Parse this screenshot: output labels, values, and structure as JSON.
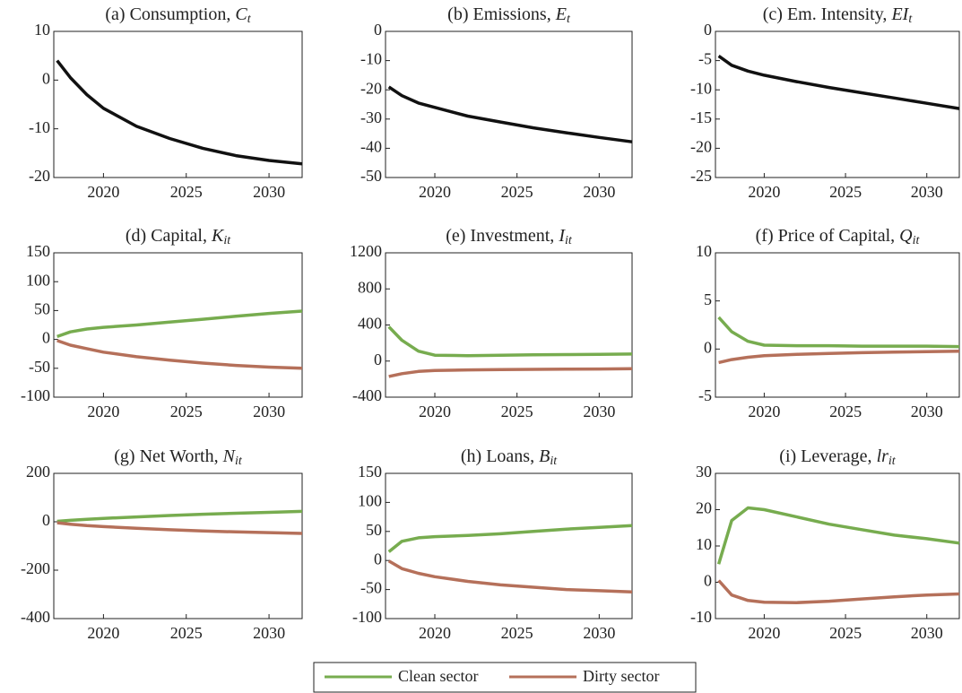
{
  "chart_data": [
    {
      "type": "line",
      "title": "(a) Consumption,",
      "title_symbol": "C",
      "title_subscript": "t",
      "x": [
        2017.2,
        2018,
        2019,
        2020,
        2022,
        2024,
        2026,
        2028,
        2030,
        2032
      ],
      "series": [
        {
          "color": "#111111",
          "values": [
            4,
            0.5,
            -3,
            -5.8,
            -9.5,
            -12,
            -14,
            -15.5,
            -16.5,
            -17.2
          ]
        }
      ],
      "xlim": [
        2017,
        2032
      ],
      "xticks": [
        2020,
        2025,
        2030
      ],
      "ylim": [
        -20,
        10
      ],
      "yticks": [
        -20,
        -10,
        0,
        10
      ]
    },
    {
      "type": "line",
      "title": "(b) Emissions,",
      "title_symbol": "E",
      "title_subscript": "t",
      "x": [
        2017.2,
        2018,
        2019,
        2020,
        2022,
        2024,
        2026,
        2028,
        2030,
        2032
      ],
      "series": [
        {
          "color": "#111111",
          "values": [
            -19,
            -22,
            -24.5,
            -26,
            -29,
            -31,
            -33,
            -34.7,
            -36.3,
            -37.8
          ]
        }
      ],
      "xlim": [
        2017,
        2032
      ],
      "xticks": [
        2020,
        2025,
        2030
      ],
      "ylim": [
        -50,
        0
      ],
      "yticks": [
        -50,
        -40,
        -30,
        -20,
        -10,
        0
      ]
    },
    {
      "type": "line",
      "title": "(c) Em. Intensity,",
      "title_symbol": "EI",
      "title_subscript": "t",
      "x": [
        2017.2,
        2018,
        2019,
        2020,
        2022,
        2024,
        2026,
        2028,
        2030,
        2032
      ],
      "series": [
        {
          "color": "#111111",
          "values": [
            -4.2,
            -5.8,
            -6.8,
            -7.5,
            -8.6,
            -9.6,
            -10.5,
            -11.4,
            -12.3,
            -13.2
          ]
        }
      ],
      "xlim": [
        2017,
        2032
      ],
      "xticks": [
        2020,
        2025,
        2030
      ],
      "ylim": [
        -25,
        0
      ],
      "yticks": [
        -25,
        -20,
        -15,
        -10,
        -5,
        0
      ]
    },
    {
      "type": "line",
      "title": "(d) Capital,",
      "title_symbol": "K",
      "title_subscript": "it",
      "x": [
        2017.2,
        2018,
        2019,
        2020,
        2022,
        2024,
        2026,
        2028,
        2030,
        2032
      ],
      "series": [
        {
          "name": "Clean sector",
          "color": "#77ac4f",
          "values": [
            5,
            13,
            18,
            21,
            25,
            30,
            35,
            40,
            45,
            49
          ]
        },
        {
          "name": "Dirty sector",
          "color": "#b5705a",
          "values": [
            -2,
            -10,
            -16,
            -22,
            -30,
            -36,
            -41,
            -45,
            -48,
            -50
          ]
        }
      ],
      "xlim": [
        2017,
        2032
      ],
      "xticks": [
        2020,
        2025,
        2030
      ],
      "ylim": [
        -100,
        150
      ],
      "yticks": [
        -100,
        -50,
        0,
        50,
        100,
        150
      ]
    },
    {
      "type": "line",
      "title": "(e) Investment,",
      "title_symbol": "I",
      "title_subscript": "it",
      "x": [
        2017.2,
        2018,
        2019,
        2020,
        2022,
        2024,
        2026,
        2028,
        2030,
        2032
      ],
      "series": [
        {
          "color": "#77ac4f",
          "values": [
            380,
            230,
            110,
            65,
            60,
            65,
            70,
            72,
            75,
            78
          ]
        },
        {
          "color": "#b5705a",
          "values": [
            -170,
            -140,
            -115,
            -105,
            -98,
            -95,
            -92,
            -90,
            -88,
            -85
          ]
        }
      ],
      "xlim": [
        2017,
        2032
      ],
      "xticks": [
        2020,
        2025,
        2030
      ],
      "ylim": [
        -400,
        1200
      ],
      "yticks": [
        -400,
        0,
        400,
        800,
        1200
      ]
    },
    {
      "type": "line",
      "title": "(f) Price of Capital,",
      "title_symbol": "Q",
      "title_subscript": "it",
      "x": [
        2017.2,
        2018,
        2019,
        2020,
        2022,
        2024,
        2026,
        2028,
        2030,
        2032
      ],
      "series": [
        {
          "color": "#77ac4f",
          "values": [
            3.3,
            1.8,
            0.8,
            0.4,
            0.35,
            0.35,
            0.3,
            0.3,
            0.3,
            0.25
          ]
        },
        {
          "color": "#b5705a",
          "values": [
            -1.4,
            -1.1,
            -0.85,
            -0.7,
            -0.55,
            -0.45,
            -0.38,
            -0.32,
            -0.28,
            -0.22
          ]
        }
      ],
      "xlim": [
        2017,
        2032
      ],
      "xticks": [
        2020,
        2025,
        2030
      ],
      "ylim": [
        -5,
        10
      ],
      "yticks": [
        -5,
        0,
        5,
        10
      ]
    },
    {
      "type": "line",
      "title": "(g) Net Worth,",
      "title_symbol": "N",
      "title_subscript": "it",
      "x": [
        2017.2,
        2018,
        2019,
        2020,
        2022,
        2024,
        2026,
        2028,
        2030,
        2032
      ],
      "series": [
        {
          "color": "#77ac4f",
          "values": [
            2,
            6,
            10,
            14,
            20,
            26,
            31,
            35,
            39,
            43
          ]
        },
        {
          "color": "#b5705a",
          "values": [
            -4,
            -10,
            -16,
            -20,
            -27,
            -33,
            -38,
            -42,
            -45,
            -48
          ]
        }
      ],
      "xlim": [
        2017,
        2032
      ],
      "xticks": [
        2020,
        2025,
        2030
      ],
      "ylim": [
        -400,
        200
      ],
      "yticks": [
        -400,
        -200,
        0,
        200
      ]
    },
    {
      "type": "line",
      "title": "(h) Loans,",
      "title_symbol": "B",
      "title_subscript": "it",
      "x": [
        2017.2,
        2018,
        2019,
        2020,
        2022,
        2024,
        2026,
        2028,
        2030,
        2032
      ],
      "series": [
        {
          "color": "#77ac4f",
          "values": [
            15,
            33,
            39,
            41,
            43,
            46,
            50,
            54,
            57,
            60
          ]
        },
        {
          "color": "#b5705a",
          "values": [
            -1,
            -14,
            -22,
            -28,
            -36,
            -42,
            -46,
            -50,
            -52,
            -54
          ]
        }
      ],
      "xlim": [
        2017,
        2032
      ],
      "xticks": [
        2020,
        2025,
        2030
      ],
      "ylim": [
        -100,
        150
      ],
      "yticks": [
        -100,
        -50,
        0,
        50,
        100,
        150
      ]
    },
    {
      "type": "line",
      "title": "(i) Leverage,",
      "title_symbol": "lr",
      "title_subscript": "it",
      "x": [
        2017.2,
        2018,
        2019,
        2020,
        2022,
        2024,
        2026,
        2028,
        2030,
        2032
      ],
      "series": [
        {
          "color": "#77ac4f",
          "values": [
            5,
            17,
            20.5,
            20,
            18,
            16,
            14.5,
            13,
            12,
            10.8
          ]
        },
        {
          "color": "#b5705a",
          "values": [
            0.5,
            -3.5,
            -5,
            -5.5,
            -5.6,
            -5.2,
            -4.6,
            -4,
            -3.5,
            -3.2
          ]
        }
      ],
      "xlim": [
        2017,
        2032
      ],
      "xticks": [
        2020,
        2025,
        2030
      ],
      "ylim": [
        -10,
        30
      ],
      "yticks": [
        -10,
        0,
        10,
        20,
        30
      ]
    }
  ]
}
